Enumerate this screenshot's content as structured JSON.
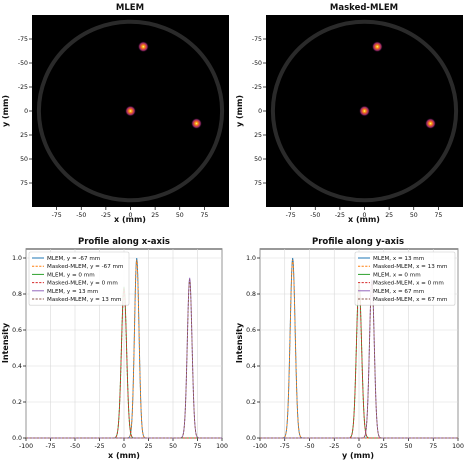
{
  "figure": {
    "panels": [
      {
        "id": "img_mlem",
        "title": "MLEM",
        "xlabel": "x (mm)",
        "ylabel": "y (mm)"
      },
      {
        "id": "img_masked",
        "title": "Masked-MLEM",
        "xlabel": "x (mm)",
        "ylabel": "y (mm)"
      },
      {
        "id": "prof_x",
        "title": "Profile along x-axis",
        "xlabel": "x (mm)",
        "ylabel": "Intensity"
      },
      {
        "id": "prof_y",
        "title": "Profile along y-axis",
        "xlabel": "y (mm)",
        "ylabel": "Intensity"
      }
    ]
  },
  "chart_data": [
    {
      "type": "heatmap",
      "title": "MLEM",
      "xlabel": "x (mm)",
      "ylabel": "y (mm)",
      "xlim": [
        -100,
        100
      ],
      "ylim": [
        100,
        -100
      ],
      "xticks": [
        -75,
        -50,
        -25,
        0,
        25,
        50,
        75
      ],
      "yticks": [
        -75,
        -50,
        -25,
        0,
        25,
        50,
        75
      ],
      "colormap": "inferno",
      "background_ring_radius_mm": 93,
      "sources": [
        {
          "x": 13,
          "y": -67
        },
        {
          "x": 0,
          "y": 0
        },
        {
          "x": 67,
          "y": 13
        }
      ]
    },
    {
      "type": "heatmap",
      "title": "Masked-MLEM",
      "xlabel": "x (mm)",
      "ylabel": "y (mm)",
      "xlim": [
        -100,
        100
      ],
      "ylim": [
        100,
        -100
      ],
      "xticks": [
        -75,
        -50,
        -25,
        0,
        25,
        50,
        75
      ],
      "yticks": [
        -75,
        -50,
        -25,
        0,
        25,
        50,
        75
      ],
      "colormap": "inferno",
      "background_ring_radius_mm": 93,
      "sources": [
        {
          "x": 13,
          "y": -67
        },
        {
          "x": 0,
          "y": 0
        },
        {
          "x": 67,
          "y": 13
        }
      ]
    },
    {
      "type": "line",
      "title": "Profile along x-axis",
      "xlabel": "x (mm)",
      "ylabel": "Intensity",
      "xlim": [
        -100,
        100
      ],
      "ylim": [
        0,
        1.05
      ],
      "xticks": [
        -100,
        -75,
        -50,
        -25,
        0,
        25,
        50,
        75,
        100
      ],
      "yticks": [
        0.0,
        0.2,
        0.4,
        0.6,
        0.8,
        1.0
      ],
      "grid": true,
      "legend": "top-left",
      "series": [
        {
          "name": "MLEM, y = -67 mm",
          "color": "#1f77b4",
          "style": "solid",
          "peak_x": 13,
          "peak": 1.0,
          "sigma": 2.3
        },
        {
          "name": "Masked-MLEM, y = -67 mm",
          "color": "#ff7f0e",
          "style": "dashed",
          "peak_x": 13,
          "peak": 0.99,
          "sigma": 2.3
        },
        {
          "name": "MLEM, y = 0 mm",
          "color": "#2ca02c",
          "style": "solid",
          "peak_x": 0,
          "peak": 0.84,
          "sigma": 2.6
        },
        {
          "name": "Masked-MLEM, y = 0 mm",
          "color": "#d62728",
          "style": "dashed",
          "peak_x": 0,
          "peak": 0.83,
          "sigma": 2.6
        },
        {
          "name": "MLEM, y = 13 mm",
          "color": "#9467bd",
          "style": "solid",
          "peak_x": 67,
          "peak": 0.89,
          "sigma": 2.4
        },
        {
          "name": "Masked-MLEM, y = 13 mm",
          "color": "#8c564b",
          "style": "dashed",
          "peak_x": 67,
          "peak": 0.88,
          "sigma": 2.4
        }
      ]
    },
    {
      "type": "line",
      "title": "Profile along y-axis",
      "xlabel": "y (mm)",
      "ylabel": "Intensity",
      "xlim": [
        -100,
        100
      ],
      "ylim": [
        0,
        1.05
      ],
      "xticks": [
        -100,
        -75,
        -50,
        -25,
        0,
        25,
        50,
        75,
        100
      ],
      "yticks": [
        0.0,
        0.2,
        0.4,
        0.6,
        0.8,
        1.0
      ],
      "grid": true,
      "legend": "top-right",
      "series": [
        {
          "name": "MLEM, x = 13 mm",
          "color": "#1f77b4",
          "style": "solid",
          "peak_x": -67,
          "peak": 1.0,
          "sigma": 2.5
        },
        {
          "name": "Masked-MLEM, x = 13 mm",
          "color": "#ff7f0e",
          "style": "dashed",
          "peak_x": -67,
          "peak": 0.99,
          "sigma": 2.5
        },
        {
          "name": "MLEM, x = 0 mm",
          "color": "#2ca02c",
          "style": "solid",
          "peak_x": 0,
          "peak": 0.86,
          "sigma": 2.6
        },
        {
          "name": "Masked-MLEM, x = 0 mm",
          "color": "#d62728",
          "style": "dashed",
          "peak_x": 0,
          "peak": 0.85,
          "sigma": 2.6
        },
        {
          "name": "MLEM, x = 67 mm",
          "color": "#9467bd",
          "style": "solid",
          "peak_x": 13,
          "peak": 0.88,
          "sigma": 2.4
        },
        {
          "name": "Masked-MLEM, x = 67 mm",
          "color": "#8c564b",
          "style": "dashed",
          "peak_x": 13,
          "peak": 0.87,
          "sigma": 2.4
        }
      ]
    }
  ]
}
